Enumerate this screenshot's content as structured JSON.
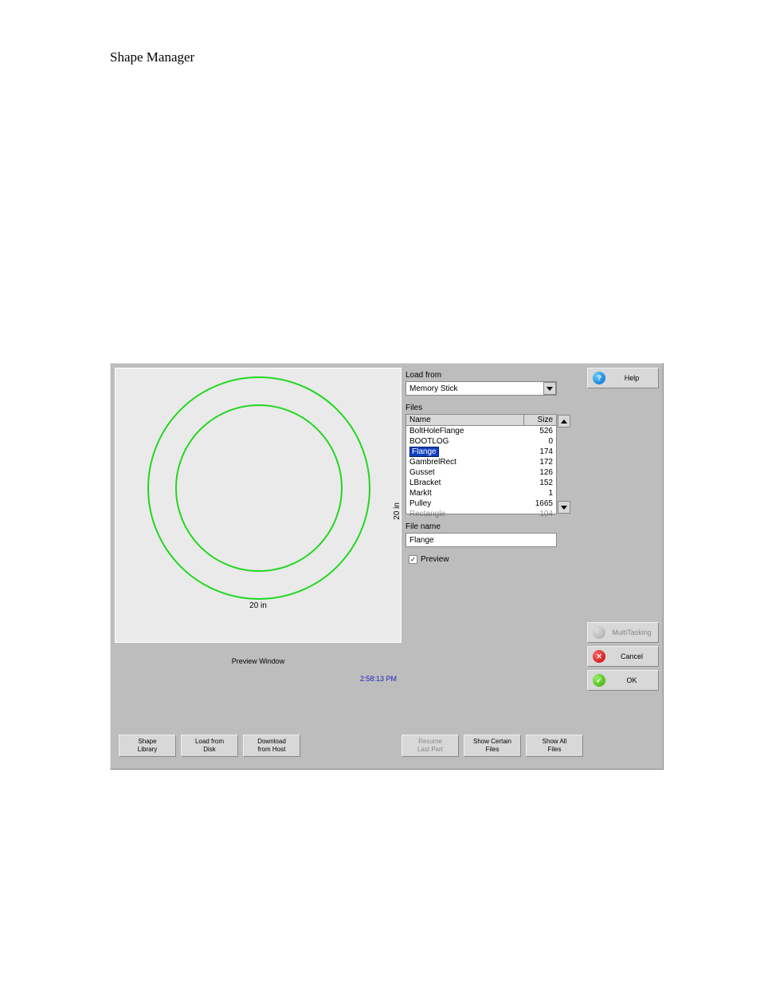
{
  "page": {
    "title": "Shape Manager"
  },
  "preview": {
    "dimension_x": "20 in",
    "dimension_y": "20 in",
    "caption": "Preview Window",
    "outer_circle_color": "#20d820",
    "inner_circle_color": "#20d820"
  },
  "timestamp": "2:58:13 PM",
  "load_from": {
    "label": "Load from",
    "selected": "Memory Stick"
  },
  "files": {
    "label": "Files",
    "columns": {
      "name": "Name",
      "size": "Size"
    },
    "rows": [
      {
        "name": "BoltHoleFlange",
        "size": "526"
      },
      {
        "name": "BOOTLOG",
        "size": "0"
      },
      {
        "name": "Flange",
        "size": "174",
        "selected": true
      },
      {
        "name": "GambrelRect",
        "size": "172"
      },
      {
        "name": "Gusset",
        "size": "126"
      },
      {
        "name": "LBracket",
        "size": "152"
      },
      {
        "name": "MarkIt",
        "size": "1"
      },
      {
        "name": "Pulley",
        "size": "1665"
      },
      {
        "name": "Rectangle",
        "size": "104"
      }
    ]
  },
  "file_name": {
    "label": "File name",
    "value": "Flange"
  },
  "preview_checkbox": {
    "label": "Preview",
    "checked": true
  },
  "side": {
    "help": "Help",
    "multitasking": "MultiTasking",
    "cancel": "Cancel",
    "ok": "OK"
  },
  "bottom": {
    "shape_library": "Shape\nLibrary",
    "load_disk": "Load from\nDisk",
    "download_host": "Download\nfrom Host",
    "resume": "Resume\nLast Part",
    "show_certain": "Show Certain\nFiles",
    "show_all": "Show All\nFiles"
  },
  "colors": {
    "window_bg": "#bdbdbd",
    "panel_bg": "#eaeaea",
    "button_bg": "#d8d8d8",
    "selection_bg": "#1040c0",
    "timestamp_color": "#2020c0"
  }
}
